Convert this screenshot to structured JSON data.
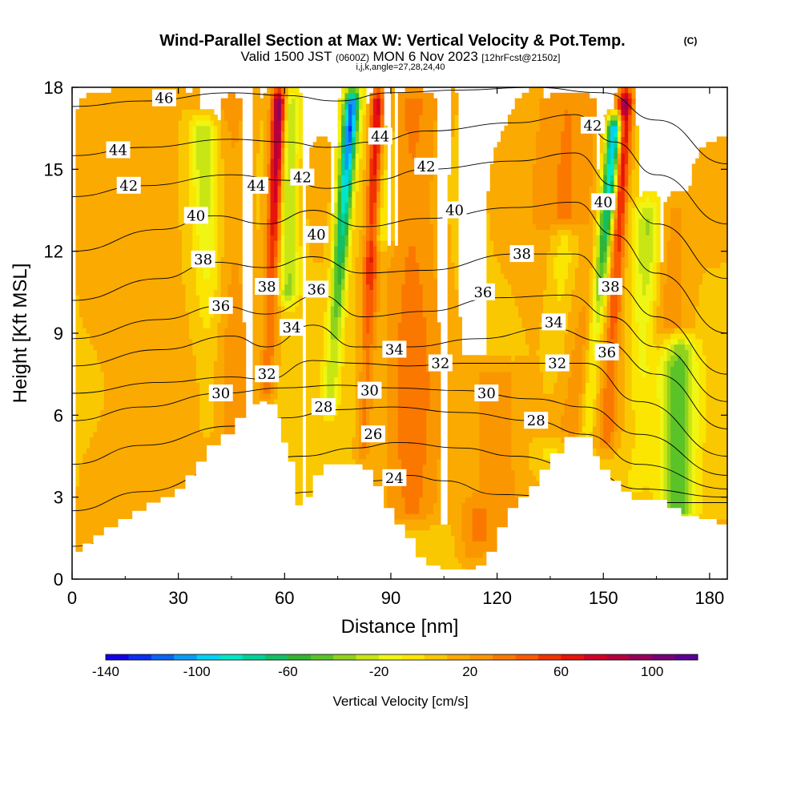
{
  "chart_data": {
    "type": "heatmap",
    "title": "Wind-Parallel Section at Max W: Vertical Velocity & Pot.Temp.",
    "title_mark": "(C)",
    "subtitle": {
      "valid": "Valid 1500 JST",
      "utc": "(0600Z)",
      "date": "MON 6 Nov 2023",
      "fcst": "[12hrFcst@2150z]"
    },
    "indices": "i,j,k,angle=27,28,24,40",
    "xlabel": "Distance [nm]",
    "ylabel": "Height [Kft MSL]",
    "xlim": [
      0,
      185
    ],
    "ylim": [
      0,
      18
    ],
    "xticks": [
      "0",
      "30",
      "60",
      "90",
      "120",
      "150",
      "180"
    ],
    "yticks": [
      "0",
      "3",
      "6",
      "9",
      "12",
      "15",
      "18"
    ],
    "colorbar": {
      "label": "Vertical Velocity [cm/s]",
      "range": [
        -140,
        120
      ],
      "step": 10,
      "ticks": [
        "-140",
        "-100",
        "-60",
        "-20",
        "20",
        "60",
        "100"
      ],
      "colors": [
        "#1400e6",
        "#0a2ef0",
        "#0a64f0",
        "#0a9bf5",
        "#00d2f5",
        "#00e6c8",
        "#00d296",
        "#14be64",
        "#32b432",
        "#5ac328",
        "#91d21e",
        "#c8e614",
        "#f0f514",
        "#fae600",
        "#fac800",
        "#faaa00",
        "#fa9600",
        "#fa7800",
        "#fa5a00",
        "#f03200",
        "#e6140a",
        "#d20028",
        "#b4003c",
        "#96005a",
        "#780078",
        "#5a0096"
      ]
    },
    "terrain": [
      [
        0,
        1.0
      ],
      [
        3,
        1.3
      ],
      [
        6,
        1.6
      ],
      [
        9,
        1.9
      ],
      [
        13,
        2.2
      ],
      [
        17,
        2.5
      ],
      [
        21,
        2.8
      ],
      [
        25,
        3.0
      ],
      [
        29,
        3.3
      ],
      [
        32,
        3.8
      ],
      [
        35,
        4.3
      ],
      [
        38,
        4.9
      ],
      [
        42,
        5.3
      ],
      [
        46,
        5.9
      ],
      [
        50,
        6.4
      ],
      [
        53,
        6.5
      ],
      [
        55,
        6.4
      ],
      [
        58,
        5.9
      ],
      [
        59,
        5.0
      ],
      [
        61,
        4.3
      ],
      [
        63,
        2.7
      ],
      [
        66,
        3.0
      ],
      [
        68,
        3.8
      ],
      [
        71,
        4.2
      ],
      [
        79,
        4.2
      ],
      [
        82,
        4.0
      ],
      [
        85,
        3.4
      ],
      [
        88,
        2.6
      ],
      [
        91,
        2.0
      ],
      [
        94,
        1.5
      ],
      [
        97,
        0.8
      ],
      [
        100,
        0.5
      ],
      [
        104,
        0.35
      ],
      [
        112,
        0.35
      ],
      [
        114,
        0.5
      ],
      [
        117,
        1.0
      ],
      [
        120,
        1.9
      ],
      [
        123,
        2.6
      ],
      [
        126,
        3.0
      ],
      [
        129,
        3.4
      ],
      [
        132,
        4.0
      ],
      [
        135,
        4.6
      ],
      [
        139,
        5.2
      ],
      [
        145,
        5.2
      ],
      [
        147,
        4.5
      ],
      [
        149,
        4.0
      ],
      [
        152,
        3.6
      ],
      [
        155,
        3.2
      ],
      [
        158,
        2.9
      ],
      [
        165,
        2.9
      ],
      [
        168,
        2.6
      ],
      [
        172,
        2.3
      ],
      [
        177,
        2.2
      ],
      [
        182,
        2.0
      ],
      [
        185,
        1.8
      ]
    ],
    "updrafts": [
      [
        55,
        2,
        6.5,
        18,
        110,
        0.2,
        0.95
      ],
      [
        82,
        2,
        4.3,
        18,
        90,
        0.2,
        0.95
      ],
      [
        151,
        2,
        4.6,
        18,
        85,
        0.25,
        0.95
      ],
      [
        45,
        6,
        4,
        18,
        15,
        0,
        0
      ],
      [
        96,
        8,
        2,
        18,
        25,
        0,
        0
      ],
      [
        140,
        10,
        5,
        18,
        22,
        0,
        0
      ],
      [
        120,
        8,
        1,
        8,
        18,
        0,
        0
      ],
      [
        113,
        4,
        0.4,
        3,
        14,
        0,
        0
      ],
      [
        168,
        6,
        8,
        14,
        18,
        0,
        0
      ],
      [
        18,
        14,
        0,
        18,
        8,
        0,
        0
      ]
    ],
    "downdrafts": [
      [
        72.5,
        2.2,
        6,
        18,
        130,
        0.35,
        0.88
      ],
      [
        145,
        2.2,
        5,
        17,
        130,
        0.45,
        1.0
      ],
      [
        40,
        4,
        5,
        17,
        40,
        -0.15,
        0.9
      ],
      [
        61,
        3,
        10,
        18,
        40,
        0,
        0
      ],
      [
        87,
        4,
        12,
        18,
        28,
        0,
        0
      ],
      [
        135,
        5,
        4,
        13,
        35,
        0.3,
        0.85
      ],
      [
        159,
        4,
        3,
        14,
        45,
        0.25,
        0.9
      ],
      [
        171,
        5,
        2,
        9,
        55,
        0,
        0
      ]
    ],
    "isentropes": [
      {
        "label": "24",
        "pos": [
          91,
          3.7
        ],
        "pts": [
          [
            0,
            1.2
          ],
          [
            20,
            1.9
          ],
          [
            45,
            2.8
          ],
          [
            70,
            3.2
          ],
          [
            85,
            3.6
          ],
          [
            95,
            3.8
          ],
          [
            105,
            3.6
          ],
          [
            120,
            3.1
          ],
          [
            140,
            3.0
          ],
          [
            160,
            2.8
          ],
          [
            185,
            2.8
          ]
        ]
      },
      {
        "label": "26",
        "pos": [
          85,
          5.3
        ],
        "pts": [
          [
            0,
            2.5
          ],
          [
            20,
            3.2
          ],
          [
            45,
            4.1
          ],
          [
            65,
            4.5
          ],
          [
            80,
            4.8
          ],
          [
            92,
            5.0
          ],
          [
            110,
            4.8
          ],
          [
            125,
            4.5
          ],
          [
            145,
            4.0
          ],
          [
            160,
            3.3
          ],
          [
            185,
            3.0
          ]
        ]
      },
      {
        "label": "28",
        "pos": [
          71,
          6.3
        ],
        "pts": [
          [
            0,
            4.2
          ],
          [
            20,
            4.9
          ],
          [
            45,
            5.6
          ],
          [
            60,
            5.9
          ],
          [
            75,
            6.2
          ],
          [
            90,
            6.3
          ],
          [
            110,
            6.1
          ],
          [
            130,
            5.8
          ],
          [
            145,
            5.3
          ],
          [
            160,
            4.2
          ],
          [
            185,
            3.3
          ]
        ]
      },
      {
        "label": "28",
        "pos": [
          131,
          5.8
        ],
        "pts": []
      },
      {
        "label": "30",
        "pos": [
          42,
          6.8
        ],
        "pts": [
          [
            0,
            5.8
          ],
          [
            20,
            6.3
          ],
          [
            42,
            6.8
          ],
          [
            60,
            7.0
          ],
          [
            75,
            7.1
          ],
          [
            90,
            7.0
          ],
          [
            110,
            6.9
          ],
          [
            130,
            6.6
          ],
          [
            145,
            6.3
          ],
          [
            160,
            5.3
          ],
          [
            185,
            3.8
          ]
        ]
      },
      {
        "label": "30",
        "pos": [
          84,
          6.9
        ],
        "pts": []
      },
      {
        "label": "30",
        "pos": [
          117,
          6.8
        ],
        "pts": []
      },
      {
        "label": "32",
        "pos": [
          55,
          7.5
        ],
        "pts": [
          [
            0,
            6.8
          ],
          [
            25,
            7.2
          ],
          [
            45,
            7.4
          ],
          [
            55,
            7.3
          ],
          [
            68,
            8.0
          ],
          [
            80,
            7.9
          ],
          [
            95,
            7.8
          ],
          [
            110,
            7.9
          ],
          [
            130,
            7.9
          ],
          [
            145,
            7.9
          ],
          [
            160,
            6.5
          ],
          [
            185,
            4.5
          ]
        ]
      },
      {
        "label": "32",
        "pos": [
          104,
          7.9
        ],
        "pts": []
      },
      {
        "label": "32",
        "pos": [
          137,
          7.9
        ],
        "pts": []
      },
      {
        "label": "34",
        "pos": [
          62,
          9.2
        ],
        "pts": [
          [
            0,
            7.8
          ],
          [
            25,
            8.4
          ],
          [
            45,
            8.9
          ],
          [
            55,
            8.5
          ],
          [
            68,
            9.3
          ],
          [
            80,
            8.5
          ],
          [
            95,
            8.5
          ],
          [
            115,
            8.8
          ],
          [
            135,
            9.2
          ],
          [
            150,
            8.7
          ],
          [
            165,
            7.5
          ],
          [
            185,
            5.5
          ]
        ]
      },
      {
        "label": "34",
        "pos": [
          91,
          8.4
        ],
        "pts": []
      },
      {
        "label": "34",
        "pos": [
          136,
          9.4
        ],
        "pts": []
      },
      {
        "label": "36",
        "pos": [
          42,
          10.0
        ],
        "pts": [
          [
            0,
            8.8
          ],
          [
            25,
            9.5
          ],
          [
            42,
            10.0
          ],
          [
            55,
            9.7
          ],
          [
            70,
            10.4
          ],
          [
            82,
            9.6
          ],
          [
            100,
            9.8
          ],
          [
            120,
            10.3
          ],
          [
            140,
            10.4
          ],
          [
            152,
            9.6
          ],
          [
            165,
            8.5
          ],
          [
            185,
            6.5
          ]
        ]
      },
      {
        "label": "36",
        "pos": [
          69,
          10.6
        ],
        "pts": []
      },
      {
        "label": "36",
        "pos": [
          116,
          10.5
        ],
        "pts": []
      },
      {
        "label": "36",
        "pos": [
          151,
          8.3
        ],
        "pts": []
      },
      {
        "label": "38",
        "pos": [
          37,
          11.7
        ],
        "pts": [
          [
            0,
            10.2
          ],
          [
            25,
            11.0
          ],
          [
            40,
            11.6
          ],
          [
            55,
            11.4
          ],
          [
            68,
            11.8
          ],
          [
            82,
            11.2
          ],
          [
            100,
            11.3
          ],
          [
            125,
            11.9
          ],
          [
            142,
            11.9
          ],
          [
            153,
            10.8
          ],
          [
            165,
            9.6
          ],
          [
            185,
            7.5
          ]
        ]
      },
      {
        "label": "38",
        "pos": [
          55,
          10.7
        ],
        "pts": []
      },
      {
        "label": "38",
        "pos": [
          127,
          11.9
        ],
        "pts": []
      },
      {
        "label": "38",
        "pos": [
          152,
          10.7
        ],
        "pts": []
      },
      {
        "label": "40",
        "pos": [
          35,
          13.3
        ],
        "pts": [
          [
            0,
            12.0
          ],
          [
            25,
            12.8
          ],
          [
            40,
            13.3
          ],
          [
            55,
            13.0
          ],
          [
            68,
            13.5
          ],
          [
            82,
            12.9
          ],
          [
            100,
            13.2
          ],
          [
            125,
            13.6
          ],
          [
            142,
            13.8
          ],
          [
            153,
            12.6
          ],
          [
            165,
            11.2
          ],
          [
            185,
            9.0
          ]
        ]
      },
      {
        "label": "40",
        "pos": [
          69,
          12.6
        ],
        "pts": []
      },
      {
        "label": "40",
        "pos": [
          108,
          13.5
        ],
        "pts": []
      },
      {
        "label": "40",
        "pos": [
          150,
          13.8
        ],
        "pts": []
      },
      {
        "label": "42",
        "pos": [
          16,
          14.4
        ],
        "pts": [
          [
            0,
            14.0
          ],
          [
            20,
            14.4
          ],
          [
            45,
            14.8
          ],
          [
            60,
            14.6
          ],
          [
            72,
            14.3
          ],
          [
            85,
            14.6
          ],
          [
            100,
            15.0
          ],
          [
            125,
            15.3
          ],
          [
            142,
            15.6
          ],
          [
            153,
            14.4
          ],
          [
            165,
            13.0
          ],
          [
            185,
            11.0
          ]
        ]
      },
      {
        "label": "42",
        "pos": [
          65,
          14.7
        ],
        "pts": []
      },
      {
        "label": "42",
        "pos": [
          100,
          15.1
        ],
        "pts": []
      },
      {
        "label": "42",
        "pos": [
          147,
          16.6
        ],
        "pts": []
      },
      {
        "label": "44",
        "pos": [
          13,
          15.7
        ],
        "pts": [
          [
            0,
            15.5
          ],
          [
            20,
            15.8
          ],
          [
            45,
            16.1
          ],
          [
            60,
            16.0
          ],
          [
            72,
            15.8
          ],
          [
            85,
            16.0
          ],
          [
            100,
            16.4
          ],
          [
            125,
            16.7
          ],
          [
            142,
            17.0
          ],
          [
            153,
            16.0
          ],
          [
            165,
            14.8
          ],
          [
            185,
            13.0
          ]
        ]
      },
      {
        "label": "44",
        "pos": [
          52,
          14.4
        ],
        "pts": []
      },
      {
        "label": "44",
        "pos": [
          87,
          16.2
        ],
        "pts": []
      },
      {
        "label": "46",
        "pos": [
          26,
          17.6
        ],
        "pts": [
          [
            0,
            17.3
          ],
          [
            20,
            17.5
          ],
          [
            45,
            17.8
          ],
          [
            60,
            17.7
          ],
          [
            75,
            17.5
          ],
          [
            90,
            17.8
          ],
          [
            110,
            17.9
          ],
          [
            130,
            18.0
          ],
          [
            150,
            17.8
          ],
          [
            165,
            16.8
          ],
          [
            185,
            15.2
          ]
        ]
      }
    ]
  }
}
